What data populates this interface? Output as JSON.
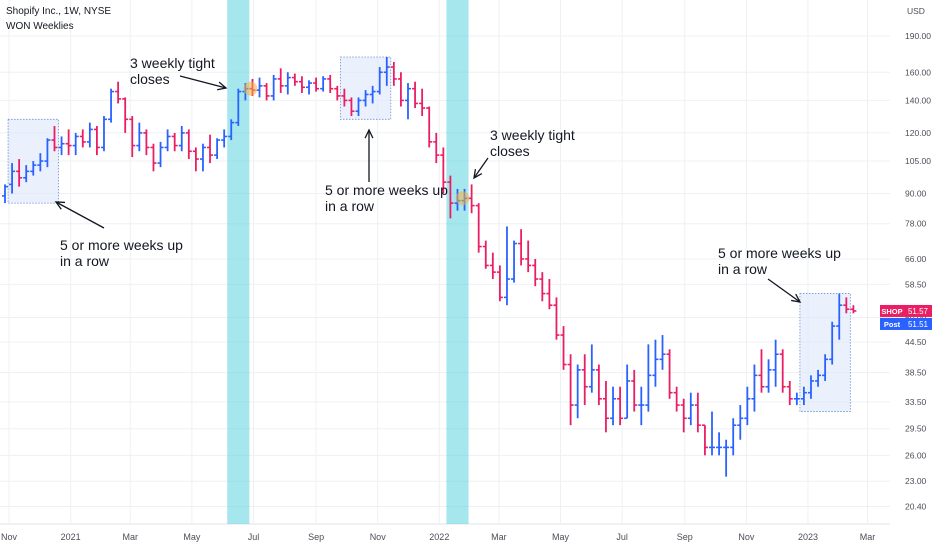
{
  "header": {
    "title": "Shopify Inc., 1W, NYSE",
    "indicator": "WON Weeklies"
  },
  "colors": {
    "up": "#2962ff",
    "down": "#e91e63",
    "highlight_band": "#5dd3e0",
    "box_fill": "#dce8fb",
    "box_border": "#6f8fd0",
    "tight_marker": "#f5b041",
    "grid": "#eef0f4",
    "axis_text": "#4a4e58"
  },
  "chart_data": {
    "type": "ohlc",
    "symbol": "SHOP",
    "interval": "1W",
    "exchange": "NYSE",
    "price_unit": "USD",
    "y_scale": "log",
    "ylim": [
      19.5,
      205
    ],
    "y_ticks": [
      "190.00",
      "160.00",
      "140.00",
      "120.00",
      "105.00",
      "90.00",
      "78.00",
      "66.00",
      "58.50",
      "50.00",
      "44.50",
      "38.50",
      "33.50",
      "29.50",
      "26.00",
      "23.00",
      "20.40"
    ],
    "x_ticks": [
      "Nov",
      "2021",
      "Mar",
      "May",
      "Jul",
      "Sep",
      "Nov",
      "2022",
      "Mar",
      "May",
      "Jul",
      "Sep",
      "Nov",
      "2023",
      "Mar"
    ],
    "last_price": {
      "label": "SHOP",
      "value": "51.57"
    },
    "post_price": {
      "label": "Post",
      "value": "51.51"
    },
    "bars": [
      {
        "date": "2020-10-26",
        "open": 89,
        "high": 94,
        "low": 86,
        "close": 93
      },
      {
        "date": "2020-11-02",
        "open": 94,
        "high": 104,
        "low": 90,
        "close": 100
      },
      {
        "date": "2020-11-09",
        "open": 100,
        "high": 106,
        "low": 93,
        "close": 97
      },
      {
        "date": "2020-11-16",
        "open": 97,
        "high": 103,
        "low": 95,
        "close": 100
      },
      {
        "date": "2020-11-23",
        "open": 100,
        "high": 105,
        "low": 98,
        "close": 103
      },
      {
        "date": "2020-11-30",
        "open": 103,
        "high": 109,
        "low": 100,
        "close": 105
      },
      {
        "date": "2020-12-07",
        "open": 105,
        "high": 117,
        "low": 102,
        "close": 116
      },
      {
        "date": "2020-12-14",
        "open": 116,
        "high": 124,
        "low": 110,
        "close": 112
      },
      {
        "date": "2020-12-21",
        "open": 112,
        "high": 118,
        "low": 108,
        "close": 114
      },
      {
        "date": "2020-12-28",
        "open": 114,
        "high": 122,
        "low": 108,
        "close": 113
      },
      {
        "date": "2021-01-04",
        "open": 113,
        "high": 120,
        "low": 108,
        "close": 118
      },
      {
        "date": "2021-01-11",
        "open": 118,
        "high": 122,
        "low": 112,
        "close": 115
      },
      {
        "date": "2021-01-18",
        "open": 115,
        "high": 126,
        "low": 112,
        "close": 122
      },
      {
        "date": "2021-01-25",
        "open": 122,
        "high": 124,
        "low": 108,
        "close": 112
      },
      {
        "date": "2021-02-01",
        "open": 112,
        "high": 130,
        "low": 110,
        "close": 128
      },
      {
        "date": "2021-02-08",
        "open": 128,
        "high": 148,
        "low": 126,
        "close": 146
      },
      {
        "date": "2021-02-15",
        "open": 146,
        "high": 153,
        "low": 138,
        "close": 141
      },
      {
        "date": "2021-02-22",
        "open": 141,
        "high": 142,
        "low": 120,
        "close": 128
      },
      {
        "date": "2021-03-01",
        "open": 128,
        "high": 130,
        "low": 107,
        "close": 113
      },
      {
        "date": "2021-03-08",
        "open": 113,
        "high": 126,
        "low": 110,
        "close": 120
      },
      {
        "date": "2021-03-15",
        "open": 120,
        "high": 122,
        "low": 108,
        "close": 112
      },
      {
        "date": "2021-03-22",
        "open": 112,
        "high": 114,
        "low": 100,
        "close": 104
      },
      {
        "date": "2021-03-29",
        "open": 104,
        "high": 115,
        "low": 102,
        "close": 112
      },
      {
        "date": "2021-04-05",
        "open": 112,
        "high": 122,
        "low": 110,
        "close": 118
      },
      {
        "date": "2021-04-12",
        "open": 118,
        "high": 120,
        "low": 110,
        "close": 113
      },
      {
        "date": "2021-04-19",
        "open": 113,
        "high": 124,
        "low": 110,
        "close": 120
      },
      {
        "date": "2021-04-26",
        "open": 120,
        "high": 122,
        "low": 106,
        "close": 110
      },
      {
        "date": "2021-05-03",
        "open": 110,
        "high": 112,
        "low": 100,
        "close": 106
      },
      {
        "date": "2021-05-10",
        "open": 106,
        "high": 114,
        "low": 100,
        "close": 112
      },
      {
        "date": "2021-05-17",
        "open": 112,
        "high": 119,
        "low": 104,
        "close": 108
      },
      {
        "date": "2021-05-24",
        "open": 108,
        "high": 117,
        "low": 106,
        "close": 116
      },
      {
        "date": "2021-05-31",
        "open": 116,
        "high": 122,
        "low": 112,
        "close": 118
      },
      {
        "date": "2021-06-07",
        "open": 118,
        "high": 128,
        "low": 116,
        "close": 126
      },
      {
        "date": "2021-06-14",
        "open": 126,
        "high": 148,
        "low": 124,
        "close": 146
      },
      {
        "date": "2021-06-21",
        "open": 146,
        "high": 152,
        "low": 140,
        "close": 148
      },
      {
        "date": "2021-06-28",
        "open": 148,
        "high": 155,
        "low": 143,
        "close": 147
      },
      {
        "date": "2021-07-05",
        "open": 147,
        "high": 156,
        "low": 142,
        "close": 150
      },
      {
        "date": "2021-07-12",
        "open": 150,
        "high": 152,
        "low": 140,
        "close": 143
      },
      {
        "date": "2021-07-19",
        "open": 143,
        "high": 158,
        "low": 140,
        "close": 155
      },
      {
        "date": "2021-07-26",
        "open": 155,
        "high": 163,
        "low": 145,
        "close": 150
      },
      {
        "date": "2021-08-02",
        "open": 150,
        "high": 160,
        "low": 144,
        "close": 156
      },
      {
        "date": "2021-08-09",
        "open": 156,
        "high": 159,
        "low": 150,
        "close": 153
      },
      {
        "date": "2021-08-16",
        "open": 153,
        "high": 157,
        "low": 145,
        "close": 149
      },
      {
        "date": "2021-08-23",
        "open": 149,
        "high": 154,
        "low": 144,
        "close": 152
      },
      {
        "date": "2021-08-30",
        "open": 152,
        "high": 156,
        "low": 146,
        "close": 148
      },
      {
        "date": "2021-09-06",
        "open": 148,
        "high": 157,
        "low": 146,
        "close": 155
      },
      {
        "date": "2021-09-13",
        "open": 155,
        "high": 158,
        "low": 145,
        "close": 148
      },
      {
        "date": "2021-09-20",
        "open": 148,
        "high": 150,
        "low": 140,
        "close": 143
      },
      {
        "date": "2021-09-27",
        "open": 143,
        "high": 148,
        "low": 136,
        "close": 140
      },
      {
        "date": "2021-10-04",
        "open": 140,
        "high": 142,
        "low": 130,
        "close": 133
      },
      {
        "date": "2021-10-11",
        "open": 133,
        "high": 142,
        "low": 130,
        "close": 140
      },
      {
        "date": "2021-10-18",
        "open": 140,
        "high": 147,
        "low": 136,
        "close": 144
      },
      {
        "date": "2021-10-25",
        "open": 144,
        "high": 150,
        "low": 138,
        "close": 146
      },
      {
        "date": "2021-11-01",
        "open": 146,
        "high": 164,
        "low": 144,
        "close": 160
      },
      {
        "date": "2021-11-08",
        "open": 160,
        "high": 172,
        "low": 150,
        "close": 164
      },
      {
        "date": "2021-11-15",
        "open": 164,
        "high": 168,
        "low": 150,
        "close": 155
      },
      {
        "date": "2021-11-22",
        "open": 155,
        "high": 160,
        "low": 136,
        "close": 140
      },
      {
        "date": "2021-11-29",
        "open": 140,
        "high": 152,
        "low": 128,
        "close": 148
      },
      {
        "date": "2021-12-06",
        "open": 148,
        "high": 153,
        "low": 135,
        "close": 138
      },
      {
        "date": "2021-12-13",
        "open": 138,
        "high": 148,
        "low": 130,
        "close": 135
      },
      {
        "date": "2021-12-20",
        "open": 135,
        "high": 136,
        "low": 112,
        "close": 115
      },
      {
        "date": "2021-12-27",
        "open": 115,
        "high": 120,
        "low": 104,
        "close": 108
      },
      {
        "date": "2022-01-03",
        "open": 108,
        "high": 112,
        "low": 90,
        "close": 95
      },
      {
        "date": "2022-01-10",
        "open": 95,
        "high": 98,
        "low": 80,
        "close": 86
      },
      {
        "date": "2022-01-17",
        "open": 86,
        "high": 92,
        "low": 83,
        "close": 87
      },
      {
        "date": "2022-01-24",
        "open": 87,
        "high": 92,
        "low": 83,
        "close": 88
      },
      {
        "date": "2022-01-31",
        "open": 88,
        "high": 94,
        "low": 82,
        "close": 85
      },
      {
        "date": "2022-02-07",
        "open": 85,
        "high": 86,
        "low": 68,
        "close": 70
      },
      {
        "date": "2022-02-14",
        "open": 70,
        "high": 72,
        "low": 63,
        "close": 64
      },
      {
        "date": "2022-02-21",
        "open": 64,
        "high": 68,
        "low": 60,
        "close": 62
      },
      {
        "date": "2022-02-28",
        "open": 62,
        "high": 64,
        "low": 54,
        "close": 55
      },
      {
        "date": "2022-03-07",
        "open": 55,
        "high": 77,
        "low": 53,
        "close": 60
      },
      {
        "date": "2022-03-14",
        "open": 60,
        "high": 72,
        "low": 59,
        "close": 71
      },
      {
        "date": "2022-03-21",
        "open": 71,
        "high": 76,
        "low": 64,
        "close": 66
      },
      {
        "date": "2022-03-28",
        "open": 66,
        "high": 72,
        "low": 62,
        "close": 64
      },
      {
        "date": "2022-04-04",
        "open": 64,
        "high": 66,
        "low": 58,
        "close": 60
      },
      {
        "date": "2022-04-11",
        "open": 60,
        "high": 62,
        "low": 54,
        "close": 56
      },
      {
        "date": "2022-04-18",
        "open": 56,
        "high": 60,
        "low": 52,
        "close": 53
      },
      {
        "date": "2022-04-25",
        "open": 53,
        "high": 55,
        "low": 45,
        "close": 46
      },
      {
        "date": "2022-05-02",
        "open": 46,
        "high": 48,
        "low": 39,
        "close": 40
      },
      {
        "date": "2022-05-09",
        "open": 40,
        "high": 42,
        "low": 30,
        "close": 33
      },
      {
        "date": "2022-05-16",
        "open": 33,
        "high": 40,
        "low": 31,
        "close": 39
      },
      {
        "date": "2022-05-23",
        "open": 39,
        "high": 42,
        "low": 33,
        "close": 36
      },
      {
        "date": "2022-05-30",
        "open": 36,
        "high": 44,
        "low": 35,
        "close": 39
      },
      {
        "date": "2022-06-06",
        "open": 39,
        "high": 40,
        "low": 33,
        "close": 34
      },
      {
        "date": "2022-06-13",
        "open": 34,
        "high": 37,
        "low": 29,
        "close": 31
      },
      {
        "date": "2022-06-20",
        "open": 31,
        "high": 36,
        "low": 30,
        "close": 34
      },
      {
        "date": "2022-06-27",
        "open": 34,
        "high": 36,
        "low": 30,
        "close": 31
      },
      {
        "date": "2022-07-04",
        "open": 31,
        "high": 40,
        "low": 31,
        "close": 37
      },
      {
        "date": "2022-07-11",
        "open": 37,
        "high": 39,
        "low": 32,
        "close": 33
      },
      {
        "date": "2022-07-18",
        "open": 33,
        "high": 36,
        "low": 30,
        "close": 33
      },
      {
        "date": "2022-07-25",
        "open": 33,
        "high": 44,
        "low": 32,
        "close": 38
      },
      {
        "date": "2022-08-01",
        "open": 38,
        "high": 45,
        "low": 36,
        "close": 41
      },
      {
        "date": "2022-08-08",
        "open": 41,
        "high": 46,
        "low": 39,
        "close": 42
      },
      {
        "date": "2022-08-15",
        "open": 42,
        "high": 43,
        "low": 34,
        "close": 35
      },
      {
        "date": "2022-08-22",
        "open": 35,
        "high": 36,
        "low": 32,
        "close": 33
      },
      {
        "date": "2022-08-29",
        "open": 33,
        "high": 34,
        "low": 29,
        "close": 31
      },
      {
        "date": "2022-09-05",
        "open": 31,
        "high": 35,
        "low": 30,
        "close": 33
      },
      {
        "date": "2022-09-12",
        "open": 33,
        "high": 35,
        "low": 29,
        "close": 30
      },
      {
        "date": "2022-09-19",
        "open": 30,
        "high": 30,
        "low": 26,
        "close": 27
      },
      {
        "date": "2022-09-26",
        "open": 27,
        "high": 32,
        "low": 26,
        "close": 27
      },
      {
        "date": "2022-10-03",
        "open": 27,
        "high": 29,
        "low": 26,
        "close": 27
      },
      {
        "date": "2022-10-10",
        "open": 27,
        "high": 28,
        "low": 23.5,
        "close": 27
      },
      {
        "date": "2022-10-17",
        "open": 27,
        "high": 31,
        "low": 26,
        "close": 30
      },
      {
        "date": "2022-10-24",
        "open": 30,
        "high": 33,
        "low": 28,
        "close": 31
      },
      {
        "date": "2022-10-31",
        "open": 31,
        "high": 36,
        "low": 30,
        "close": 34
      },
      {
        "date": "2022-11-07",
        "open": 34,
        "high": 40,
        "low": 32,
        "close": 38
      },
      {
        "date": "2022-11-14",
        "open": 38,
        "high": 43,
        "low": 35,
        "close": 36
      },
      {
        "date": "2022-11-21",
        "open": 36,
        "high": 41,
        "low": 35,
        "close": 39
      },
      {
        "date": "2022-11-28",
        "open": 39,
        "high": 45,
        "low": 36,
        "close": 42
      },
      {
        "date": "2022-12-05",
        "open": 42,
        "high": 43,
        "low": 35,
        "close": 36
      },
      {
        "date": "2022-12-12",
        "open": 36,
        "high": 37,
        "low": 33,
        "close": 34
      },
      {
        "date": "2022-12-19",
        "open": 34,
        "high": 35,
        "low": 33,
        "close": 34
      },
      {
        "date": "2022-12-26",
        "open": 34,
        "high": 36,
        "low": 33,
        "close": 35
      },
      {
        "date": "2023-01-02",
        "open": 35,
        "high": 38,
        "low": 34,
        "close": 37
      },
      {
        "date": "2023-01-09",
        "open": 37,
        "high": 39,
        "low": 36,
        "close": 38
      },
      {
        "date": "2023-01-16",
        "open": 38,
        "high": 42,
        "low": 37,
        "close": 41
      },
      {
        "date": "2023-01-23",
        "open": 41,
        "high": 49,
        "low": 40,
        "close": 48
      },
      {
        "date": "2023-01-30",
        "open": 48,
        "high": 56,
        "low": 45,
        "close": 53
      },
      {
        "date": "2023-02-06",
        "open": 53,
        "high": 55,
        "low": 51,
        "close": 52
      },
      {
        "date": "2023-02-13",
        "open": 52,
        "high": 53,
        "low": 51,
        "close": 51.57
      }
    ],
    "highlight_bands": [
      {
        "from": "2021-06-07",
        "to": "2021-06-21"
      },
      {
        "from": "2022-01-10",
        "to": "2022-01-24"
      }
    ],
    "boxes": [
      {
        "from": "2020-11-02",
        "to": "2020-12-14",
        "low": 86,
        "high": 128
      },
      {
        "from": "2021-09-27",
        "to": "2021-11-08",
        "low": 128,
        "high": 172
      },
      {
        "from": "2022-12-26",
        "to": "2023-02-06",
        "low": 32,
        "high": 56
      }
    ],
    "tight_markers": [
      {
        "date": "2021-06-28",
        "price": 148
      },
      {
        "date": "2022-01-24",
        "price": 88
      }
    ],
    "annotations": [
      {
        "id": "tight1",
        "lines": [
          "3 weekly tight",
          "closes"
        ]
      },
      {
        "id": "tight2",
        "lines": [
          "3 weekly tight",
          "closes"
        ]
      },
      {
        "id": "up1",
        "lines": [
          "5 or more weeks up",
          "in a row"
        ]
      },
      {
        "id": "up2",
        "lines": [
          "5 or more weeks up",
          "in a row"
        ]
      },
      {
        "id": "up3",
        "lines": [
          "5 or more weeks up",
          "in a row"
        ]
      }
    ],
    "axis_unit_label": "USD"
  }
}
